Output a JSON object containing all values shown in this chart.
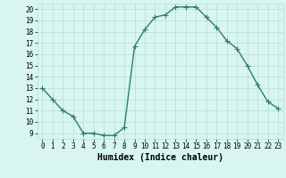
{
  "x": [
    0,
    1,
    2,
    3,
    4,
    5,
    6,
    7,
    8,
    9,
    10,
    11,
    12,
    13,
    14,
    15,
    16,
    17,
    18,
    19,
    20,
    21,
    22,
    23
  ],
  "y": [
    13,
    12,
    11,
    10.5,
    9,
    9,
    8.8,
    8.8,
    9.5,
    16.7,
    18.2,
    19.3,
    19.5,
    20.2,
    20.2,
    20.2,
    19.3,
    18.4,
    17.2,
    16.5,
    15.0,
    13.3,
    11.8,
    11.2
  ],
  "line_color": "#2e7d6e",
  "marker": "+",
  "marker_size": 4,
  "bg_color": "#d8f5f0",
  "grid_color": "#b8ddd8",
  "xlabel": "Humidex (Indice chaleur)",
  "xlim": [
    -0.5,
    23.5
  ],
  "ylim": [
    8.5,
    20.5
  ],
  "yticks": [
    9,
    10,
    11,
    12,
    13,
    14,
    15,
    16,
    17,
    18,
    19,
    20
  ],
  "xticks": [
    0,
    1,
    2,
    3,
    4,
    5,
    6,
    7,
    8,
    9,
    10,
    11,
    12,
    13,
    14,
    15,
    16,
    17,
    18,
    19,
    20,
    21,
    22,
    23
  ],
  "tick_label_fontsize": 5.5,
  "xlabel_fontsize": 7.0,
  "linewidth": 1.0,
  "marker_edge_width": 0.8
}
